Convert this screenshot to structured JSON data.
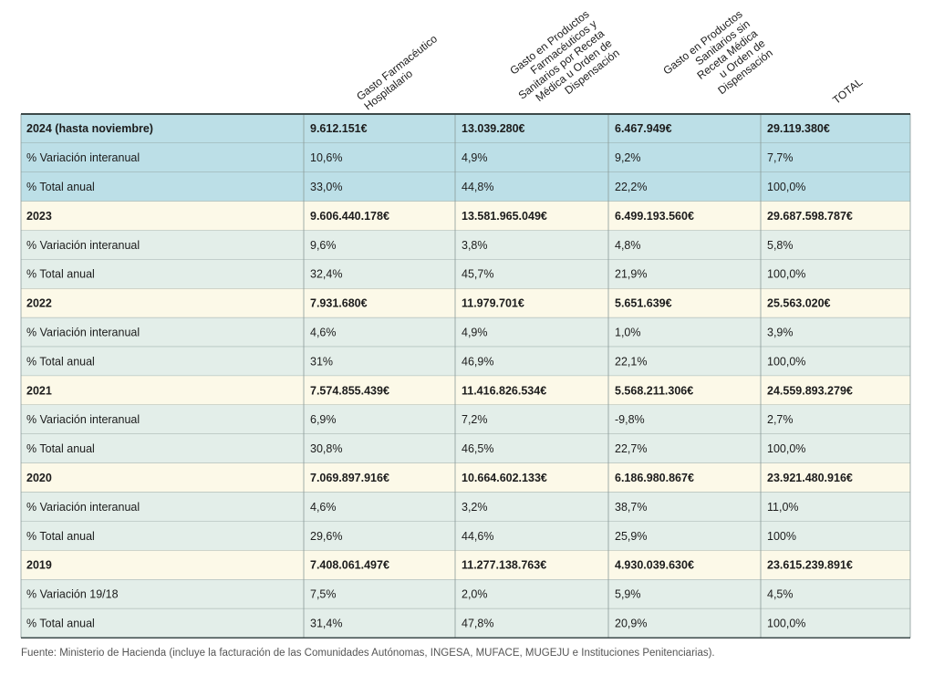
{
  "table": {
    "headers": [
      [
        "Gasto Farmacéutico",
        "Hospitalario"
      ],
      [
        "Gasto en Productos",
        "Farmacéuticos y",
        "Sanitarios por Receta",
        "Médica u Orden de",
        "Dispensación"
      ],
      [
        "Gasto en Productos",
        "Sanitarios sin",
        "Receta Médica",
        "u Orden de",
        "Dispensación"
      ],
      [
        "TOTAL"
      ]
    ],
    "rows": [
      [
        "2024 (hasta noviembre)",
        "9.612.151€",
        "13.039.280€",
        "6.467.949€",
        "29.119.380€"
      ],
      [
        "% Variación interanual",
        "10,6%",
        "4,9%",
        "9,2%",
        "7,7%"
      ],
      [
        "% Total anual",
        "33,0%",
        "44,8%",
        "22,2%",
        "100,0%"
      ],
      [
        "2023",
        "9.606.440.178€",
        "13.581.965.049€",
        "6.499.193.560€",
        "29.687.598.787€"
      ],
      [
        "% Variación interanual",
        "9,6%",
        "3,8%",
        "4,8%",
        "5,8%"
      ],
      [
        "% Total anual",
        "32,4%",
        "45,7%",
        "21,9%",
        "100,0%"
      ],
      [
        "2022",
        "7.931.680€",
        "11.979.701€",
        "5.651.639€",
        "25.563.020€"
      ],
      [
        "% Variación interanual",
        "4,6%",
        "4,9%",
        "1,0%",
        "3,9%"
      ],
      [
        "% Total anual",
        "31%",
        "46,9%",
        "22,1%",
        "100,0%"
      ],
      [
        "2021",
        "7.574.855.439€",
        "11.416.826.534€",
        "5.568.211.306€",
        "24.559.893.279€"
      ],
      [
        "% Variación interanual",
        "6,9%",
        "7,2%",
        "-9,8%",
        "2,7%"
      ],
      [
        "% Total anual",
        "30,8%",
        "46,5%",
        "22,7%",
        "100,0%"
      ],
      [
        "2020",
        "7.069.897.916€",
        "10.664.602.133€",
        "6.186.980.867€",
        "23.921.480.916€"
      ],
      [
        "% Variación interanual",
        "4,6%",
        "3,2%",
        "38,7%",
        "11,0%"
      ],
      [
        "% Total anual",
        "29,6%",
        "44,6%",
        "25,9%",
        "100%"
      ],
      [
        "2019",
        "7.408.061.497€",
        "11.277.138.763€",
        "4.930.039.630€",
        "23.615.239.891€"
      ],
      [
        "% Variación 19/18",
        "7,5%",
        "2,0%",
        "5,9%",
        "4,5%"
      ],
      [
        "% Total anual",
        "31,4%",
        "47,8%",
        "20,9%",
        "100,0%"
      ]
    ]
  },
  "footer": {
    "source": "Fuente: Ministerio de Hacienda (incluye la facturación de las Comunidades Autónomas, INGESA, MUFACE, MUGEJU e Instituciones Penitenciarias)."
  }
}
